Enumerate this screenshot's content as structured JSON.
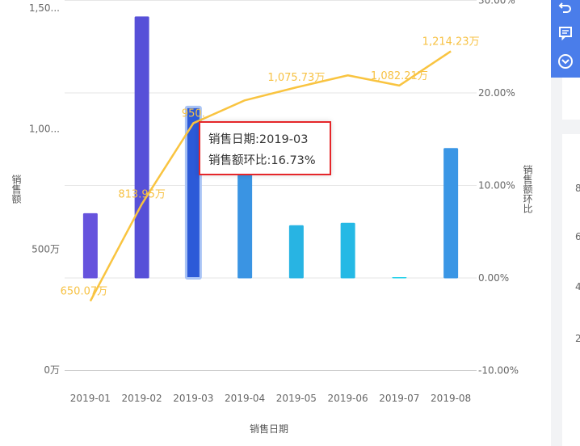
{
  "chart_data": {
    "type": "bar+line",
    "categories": [
      "2019-01",
      "2019-02",
      "2019-03",
      "2019-04",
      "2019-05",
      "2019-06",
      "2019-07",
      "2019-08"
    ],
    "series": [
      {
        "name": "",
        "type": "bar",
        "axis": "left",
        "values": [
          650.07,
          1465,
          1090,
          820,
          600,
          610,
          385,
          920
        ]
      },
      {
        "name": "",
        "type": "line",
        "axis": "right",
        "values": [
          -2.5,
          8.0,
          16.73,
          19.2,
          20.6,
          21.9,
          20.8,
          24.5
        ]
      }
    ],
    "line_point_labels": [
      "650.07万",
      "813.95万",
      "950.",
      "",
      "1,075.73万",
      "",
      "1,082.21万",
      "1,214.23万"
    ],
    "left_axis": {
      "title": "销售额",
      "ticks": [
        "1,50...",
        "1,00...",
        "500万",
        "0万"
      ],
      "tick_values": [
        1500,
        1000,
        500,
        0
      ]
    },
    "right_axis": {
      "title": "销售额环比",
      "ticks": [
        "30.00%",
        "20.00%",
        "10.00%",
        "0.00%",
        "-10.00%"
      ],
      "tick_values": [
        30,
        20,
        10,
        0,
        -10
      ]
    },
    "xlabel": "销售日期",
    "highlighted_index": 2,
    "grid": true,
    "bar_colors": [
      "#6653dd",
      "#5750d8",
      "#2c5ad8",
      "#3a94e3",
      "#28b4e3",
      "#25b9e5",
      "#1ecfe8",
      "#3a96e5"
    ],
    "line_color": "#f9c440"
  },
  "tooltip": {
    "date_line": "销售日期:2019-03",
    "ratio_line": "销售额环比:16.73%"
  },
  "toolbar": {
    "icons": [
      "undo-icon",
      "comment-icon",
      "chevron-down-icon"
    ]
  },
  "right_panel": {
    "partial_labels": [
      "8",
      "6",
      "4",
      "2"
    ]
  }
}
